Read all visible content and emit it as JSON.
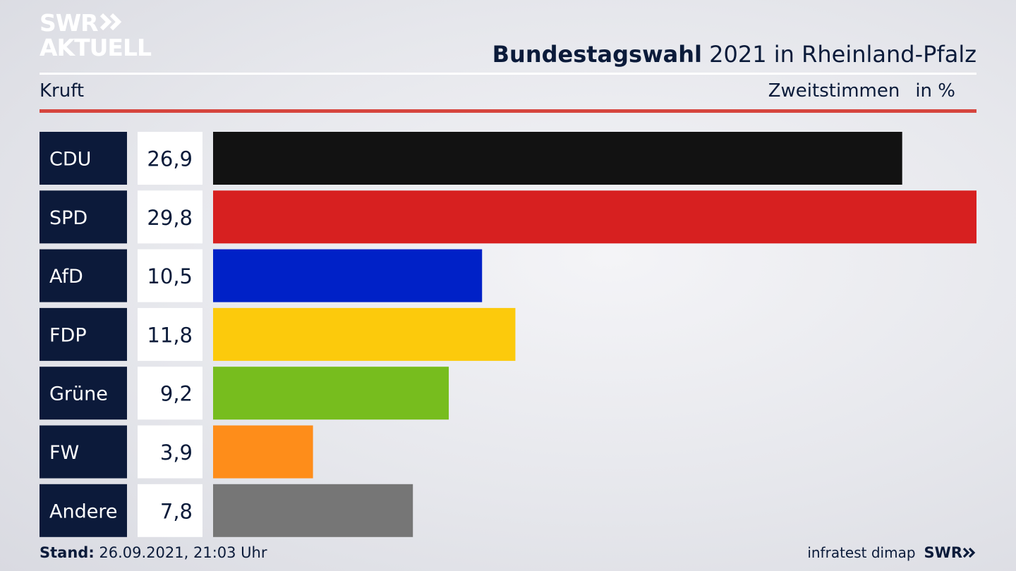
{
  "brand": {
    "line1": "SWR",
    "line2": "AKTUELL",
    "logo_color": "#ffffff"
  },
  "header": {
    "title_bold": "Bundestagswahl",
    "title_rest": " 2021 in Rheinland-Pfalz"
  },
  "subheader": {
    "left": "Kruft",
    "measure": "Zweitstimmen",
    "unit": "in %"
  },
  "footer": {
    "stand_label": "Stand:",
    "stand_value": " 26.09.2021, 21:03 Uhr",
    "source": "infratest dimap",
    "broadcaster": "SWR"
  },
  "colors": {
    "label_bg": "#0c1a3a",
    "value_bg": "#ffffff",
    "accent_red_rule": "#d6453e"
  },
  "chart_data": {
    "type": "bar",
    "orientation": "horizontal",
    "categories": [
      "CDU",
      "SPD",
      "AfD",
      "FDP",
      "Grüne",
      "FW",
      "Andere"
    ],
    "values": [
      26.9,
      29.8,
      10.5,
      11.8,
      9.2,
      3.9,
      7.8
    ],
    "value_labels": [
      "26,9",
      "29,8",
      "10,5",
      "11,8",
      "9,2",
      "3,9",
      "7,8"
    ],
    "bar_colors": [
      "#121212",
      "#d72020",
      "#0021c7",
      "#fcca0c",
      "#77bd1e",
      "#fe8d1a",
      "#767676"
    ],
    "xlim": [
      0,
      29.8
    ],
    "grid": false
  }
}
